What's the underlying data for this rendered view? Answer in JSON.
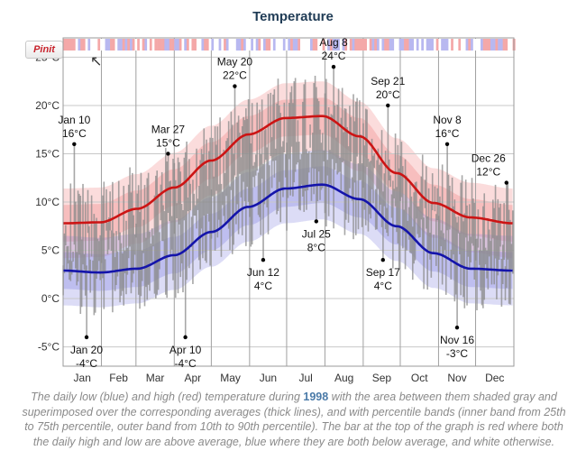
{
  "title": "Temperature",
  "pin_button": {
    "label": "Pinit",
    "icon": "pinterest-icon"
  },
  "caption": {
    "before": "The daily low (blue) and high (red) temperature during ",
    "year": "1998",
    "after": " with the area between them shaded gray and superimposed over the corresponding averages (thick lines), and with percentile bands (inner band from 25th to 75th percentile, outer band from 10th to 90th percentile). The bar at the top of the graph is red where both the daily high and low are above average, blue where they are both below average, and white otherwise."
  },
  "colors": {
    "high": "#cc1414",
    "low": "#1414aa",
    "band_hot": "#f08080",
    "band_cold": "#8080e0",
    "grid": "#c8c8c8",
    "day_bar": "#8a8a8a"
  },
  "chart_data": {
    "type": "area",
    "title": "Temperature",
    "ylim": [
      -7,
      27
    ],
    "xlim_days": [
      0,
      365
    ],
    "y_ticks": [
      {
        "value": 25,
        "label": "25°C"
      },
      {
        "value": 20,
        "label": "20°C"
      },
      {
        "value": 15,
        "label": "15°C"
      },
      {
        "value": 10,
        "label": "10°C"
      },
      {
        "value": 5,
        "label": "5°C"
      },
      {
        "value": 0,
        "label": "0°C"
      },
      {
        "value": -5,
        "label": "-5°C"
      }
    ],
    "months": [
      {
        "label": "Jan",
        "start": 0
      },
      {
        "label": "Feb",
        "start": 31
      },
      {
        "label": "Mar",
        "start": 59
      },
      {
        "label": "Apr",
        "start": 90
      },
      {
        "label": "May",
        "start": 120
      },
      {
        "label": "Jun",
        "start": 151
      },
      {
        "label": "Jul",
        "start": 181
      },
      {
        "label": "Aug",
        "start": 212
      },
      {
        "label": "Sep",
        "start": 243
      },
      {
        "label": "Oct",
        "start": 273
      },
      {
        "label": "Nov",
        "start": 304
      },
      {
        "label": "Dec",
        "start": 334
      }
    ],
    "series": [
      {
        "name": "average high",
        "x": [
          0,
          30,
          60,
          90,
          120,
          150,
          180,
          210,
          240,
          270,
          300,
          330,
          364
        ],
        "values": [
          7.8,
          7.9,
          9.3,
          11.5,
          14.3,
          17.0,
          18.7,
          18.9,
          16.8,
          13.0,
          9.9,
          8.4,
          7.8
        ]
      },
      {
        "name": "average low",
        "x": [
          0,
          30,
          60,
          90,
          120,
          150,
          180,
          210,
          240,
          270,
          300,
          330,
          364
        ],
        "values": [
          2.9,
          2.7,
          3.1,
          4.5,
          6.9,
          9.5,
          11.4,
          11.8,
          10.3,
          7.5,
          4.7,
          3.1,
          2.9
        ]
      }
    ],
    "annotations": [
      {
        "day": 9,
        "value": 16,
        "date": "Jan 10",
        "temp": "16°C",
        "placement": "above"
      },
      {
        "day": 19,
        "value": -4,
        "date": "Jan 20",
        "temp": "-4°C",
        "placement": "below"
      },
      {
        "day": 85,
        "value": 15,
        "date": "Mar 27",
        "temp": "15°C",
        "placement": "above"
      },
      {
        "day": 99,
        "value": -4,
        "date": "Apr 10",
        "temp": "-4°C",
        "placement": "below"
      },
      {
        "day": 139,
        "value": 22,
        "date": "May 20",
        "temp": "22°C",
        "placement": "above"
      },
      {
        "day": 162,
        "value": 4,
        "date": "Jun 12",
        "temp": "4°C",
        "placement": "below"
      },
      {
        "day": 205,
        "value": 8,
        "date": "Jul 25",
        "temp": "8°C",
        "placement": "below"
      },
      {
        "day": 219,
        "value": 24,
        "date": "Aug 8",
        "temp": "24°C",
        "placement": "above"
      },
      {
        "day": 259,
        "value": 4,
        "date": "Sep 17",
        "temp": "4°C",
        "placement": "below"
      },
      {
        "day": 263,
        "value": 20,
        "date": "Sep 21",
        "temp": "20°C",
        "placement": "above"
      },
      {
        "day": 311,
        "value": 16,
        "date": "Nov 8",
        "temp": "16°C",
        "placement": "above"
      },
      {
        "day": 319,
        "value": -3,
        "date": "Nov 16",
        "temp": "-3°C",
        "placement": "below"
      },
      {
        "day": 359,
        "value": 12,
        "date": "Dec 26",
        "temp": "12°C",
        "placement": "above"
      }
    ]
  }
}
